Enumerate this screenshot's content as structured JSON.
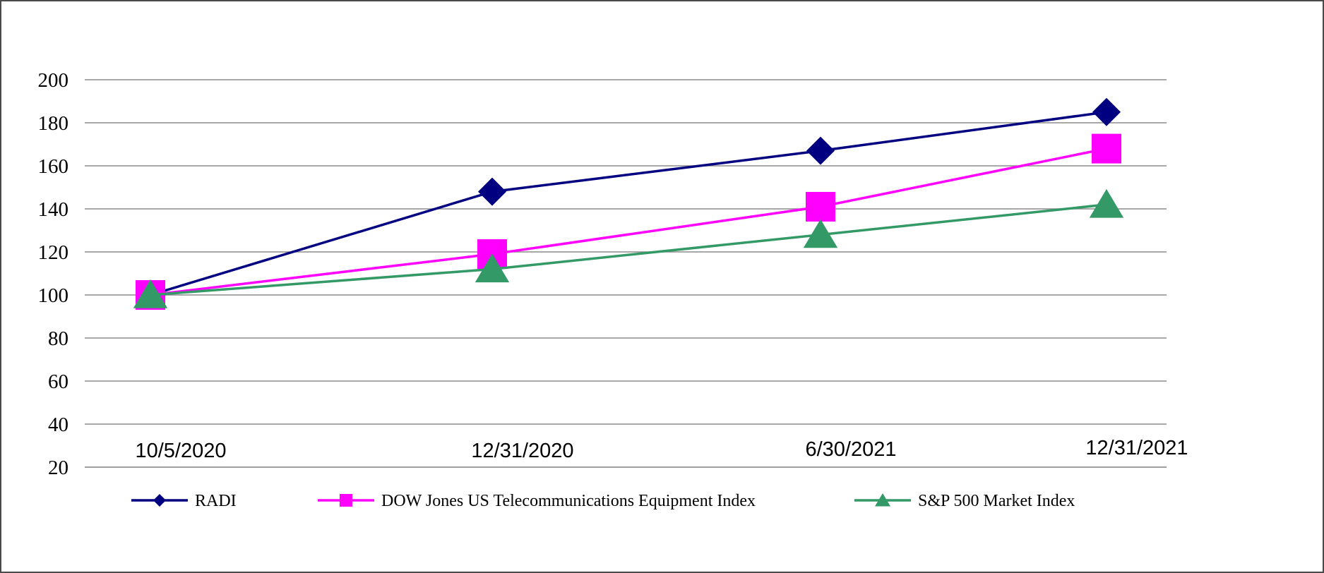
{
  "chart_data": {
    "type": "line",
    "title": "",
    "xlabel": "",
    "ylabel": "",
    "categories": [
      "10/5/2020",
      "12/31/2020",
      "6/30/2021",
      "12/31/2021"
    ],
    "ylim": [
      20,
      200
    ],
    "yticks": [
      20,
      40,
      60,
      80,
      100,
      120,
      140,
      160,
      180,
      200
    ],
    "grid": true,
    "legend_position": "bottom",
    "series": [
      {
        "name": "RADI",
        "color": "#000080",
        "marker": "diamond",
        "values": [
          100,
          148,
          167,
          185
        ]
      },
      {
        "name": "DOW Jones US Telecommunications Equipment Index",
        "color": "#ff00ff",
        "marker": "square",
        "values": [
          100,
          119,
          141,
          168
        ]
      },
      {
        "name": "S&P 500 Market Index",
        "color": "#339966",
        "marker": "triangle",
        "values": [
          100,
          112,
          128,
          142
        ]
      }
    ]
  }
}
